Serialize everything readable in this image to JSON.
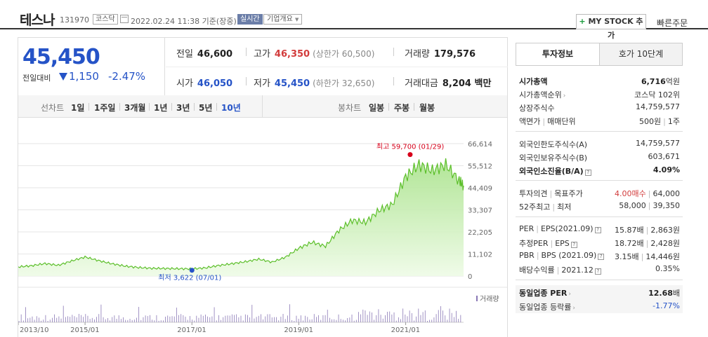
{
  "header": {
    "name": "테스나",
    "code": "131970",
    "market": "코스닥",
    "date": "2022.02.24 11:38 기준(장중)",
    "live": "실시간",
    "company_info": "기업개요",
    "mystock": "MY STOCK 추가",
    "quick_order": "빠른주문"
  },
  "price": {
    "current": "45,450",
    "prev_label": "전일대비",
    "change": "1,150",
    "change_pct": "-2.47%",
    "color": "#2553c7"
  },
  "quote": {
    "prev_close": {
      "label": "전일",
      "value": "46,600"
    },
    "high": {
      "label": "고가",
      "value": "46,350",
      "sub": "(상한가 60,500)"
    },
    "volume": {
      "label": "거래량",
      "value": "179,576"
    },
    "open": {
      "label": "시가",
      "value": "46,050"
    },
    "low": {
      "label": "저가",
      "value": "45,450",
      "sub": "(하한가 32,650)"
    },
    "amount": {
      "label": "거래대금",
      "value": "8,204 백만"
    }
  },
  "tabs": {
    "line_label": "선차트",
    "line": [
      "1일",
      "1주일",
      "3개월",
      "1년",
      "3년",
      "5년",
      "10년"
    ],
    "active": "10년",
    "candle_label": "봉차트",
    "candle": [
      "일봉",
      "주봉",
      "월봉"
    ]
  },
  "chart_data": {
    "type": "area",
    "x_range": [
      "2013/10",
      "2022/02"
    ],
    "x_ticks": [
      "2013/10",
      "2015/01",
      "2017/01",
      "2019/01",
      "2021/01"
    ],
    "y_ticks": [
      66614,
      55512,
      44409,
      33307,
      22205,
      11102,
      0
    ],
    "y_tick_labels": [
      "66,614",
      "55,512",
      "44,409",
      "33,307",
      "22,205",
      "11,102",
      "0"
    ],
    "ylim": [
      0,
      66614
    ],
    "series": [
      {
        "x": [
          "2013/10",
          "2014/01",
          "2014/04",
          "2014/07",
          "2014/10",
          "2015/01",
          "2015/04",
          "2015/07",
          "2015/10",
          "2016/01",
          "2016/04",
          "2016/07",
          "2016/10",
          "2017/01",
          "2017/04",
          "2017/07",
          "2017/10",
          "2018/01",
          "2018/04",
          "2018/07",
          "2018/10",
          "2019/01",
          "2019/04",
          "2019/07",
          "2019/10",
          "2020/01",
          "2020/04",
          "2020/07",
          "2020/10",
          "2021/01",
          "2021/04",
          "2021/07",
          "2021/10",
          "2022/01",
          "2022/02"
        ],
        "values": [
          4600,
          5200,
          6300,
          5400,
          7600,
          9600,
          7800,
          6200,
          5000,
          4300,
          3900,
          3800,
          3700,
          3622,
          4100,
          5300,
          6200,
          7200,
          8500,
          7000,
          9500,
          14000,
          17000,
          15000,
          23000,
          28000,
          27000,
          33000,
          36000,
          50000,
          56000,
          53000,
          56000,
          48000,
          45450
        ]
      }
    ],
    "annotations": [
      {
        "label": "최고 59,700 (01/29)",
        "x": "2021/01",
        "y": 59700,
        "color": "#d7001a"
      },
      {
        "label": "최저 3,622 (07/01)",
        "x": "2017/01",
        "y": 3622,
        "color": "#2553c7"
      }
    ],
    "volume_label": "거래량",
    "fill_color": "#c8f0b4",
    "line_color": "#5cbf2a"
  },
  "invest": {
    "tab_on": "투자정보",
    "tab_off": "호가 10단계",
    "g1": [
      {
        "k": "시가총액",
        "v": "6,716",
        "u": "억원"
      },
      {
        "k": "시가총액순위",
        "v": "코스닥 102위"
      },
      {
        "k": "상장주식수",
        "v": "14,759,577"
      },
      {
        "k": "액면가",
        "k2": "매매단위",
        "v": "500원",
        "v2": "1주"
      }
    ],
    "g2": [
      {
        "k": "외국인한도주식수(A)",
        "v": "14,759,577"
      },
      {
        "k": "외국인보유주식수(B)",
        "v": "603,671"
      },
      {
        "k": "외국인소진율(B/A)",
        "v": "4.09%"
      }
    ],
    "g3": [
      {
        "k": "투자의견",
        "k2": "목표주가",
        "v": "4.00매수",
        "v2": "64,000"
      },
      {
        "k": "52주최고",
        "k2": "최저",
        "v": "58,000",
        "v2": "39,350"
      }
    ],
    "g4": [
      {
        "k": "PER",
        "k2": "EPS(2021.09)",
        "v": "15.87배",
        "v2": "2,863원"
      },
      {
        "k": "추정PER",
        "k2": "EPS",
        "v": "18.72배",
        "v2": "2,428원"
      },
      {
        "k": "PBR",
        "k2": "BPS (2021.09)",
        "v": "3.15배",
        "v2": "14,446원"
      },
      {
        "k": "배당수익률",
        "k2": "2021.12",
        "v": "0.35%"
      }
    ],
    "g5": [
      {
        "k": "동일업종 PER",
        "v": "12.68",
        "u": "배"
      },
      {
        "k": "동일업종 등락률",
        "v": "-1.77%"
      }
    ]
  }
}
